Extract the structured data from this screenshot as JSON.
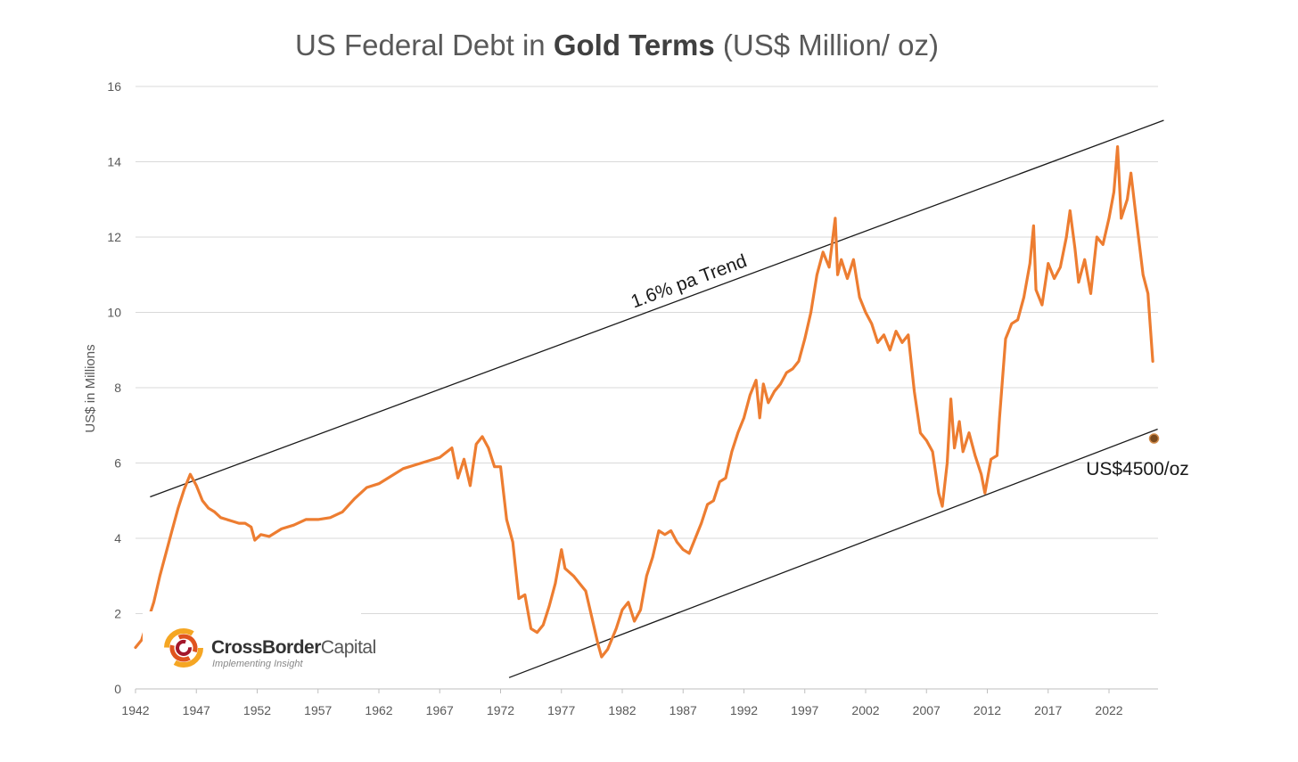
{
  "chart_data": {
    "type": "line",
    "title": "US Federal Debt in Gold Terms (US$ Million/ oz)",
    "title_parts": [
      "US Federal Debt in ",
      "Gold Terms",
      " (US$ Million/ oz)"
    ],
    "xlabel": "",
    "ylabel": "US$ in Millions",
    "xlim": [
      1942,
      2026.5
    ],
    "ylim": [
      0,
      16
    ],
    "x_ticks": [
      1942,
      1947,
      1952,
      1957,
      1962,
      1967,
      1972,
      1977,
      1982,
      1987,
      1992,
      1997,
      2002,
      2007,
      2012,
      2017,
      2022
    ],
    "y_ticks": [
      0,
      2,
      4,
      6,
      8,
      10,
      12,
      14,
      16
    ],
    "grid": "horizontal",
    "colors": {
      "series": "#ed7d31",
      "trend": "#1a1a1a",
      "marker": "#7a4a1e"
    },
    "series": [
      {
        "points": [
          [
            1942.0,
            1.1
          ],
          [
            1942.5,
            1.3
          ],
          [
            1943.0,
            1.8
          ],
          [
            1943.5,
            2.3
          ],
          [
            1944.0,
            3.0
          ],
          [
            1944.5,
            3.6
          ],
          [
            1945.0,
            4.2
          ],
          [
            1945.5,
            4.8
          ],
          [
            1946.0,
            5.3
          ],
          [
            1946.5,
            5.7
          ],
          [
            1947.0,
            5.4
          ],
          [
            1947.5,
            5.0
          ],
          [
            1948.0,
            4.8
          ],
          [
            1948.5,
            4.7
          ],
          [
            1949.0,
            4.55
          ],
          [
            1949.5,
            4.5
          ],
          [
            1950.0,
            4.45
          ],
          [
            1950.5,
            4.4
          ],
          [
            1951.0,
            4.4
          ],
          [
            1951.5,
            4.3
          ],
          [
            1951.8,
            3.95
          ],
          [
            1952.3,
            4.1
          ],
          [
            1953.0,
            4.05
          ],
          [
            1954.0,
            4.25
          ],
          [
            1955.0,
            4.35
          ],
          [
            1956.0,
            4.5
          ],
          [
            1957.0,
            4.5
          ],
          [
            1958.0,
            4.55
          ],
          [
            1959.0,
            4.7
          ],
          [
            1960.0,
            5.05
          ],
          [
            1961.0,
            5.35
          ],
          [
            1962.0,
            5.45
          ],
          [
            1963.0,
            5.65
          ],
          [
            1964.0,
            5.85
          ],
          [
            1965.0,
            5.95
          ],
          [
            1966.0,
            6.05
          ],
          [
            1967.0,
            6.15
          ],
          [
            1968.0,
            6.4
          ],
          [
            1968.5,
            5.6
          ],
          [
            1969.0,
            6.1
          ],
          [
            1969.5,
            5.4
          ],
          [
            1970.0,
            6.5
          ],
          [
            1970.5,
            6.7
          ],
          [
            1971.0,
            6.4
          ],
          [
            1971.5,
            5.9
          ],
          [
            1972.0,
            5.9
          ],
          [
            1972.5,
            4.5
          ],
          [
            1973.0,
            3.9
          ],
          [
            1973.5,
            2.4
          ],
          [
            1974.0,
            2.5
          ],
          [
            1974.5,
            1.6
          ],
          [
            1975.0,
            1.5
          ],
          [
            1975.5,
            1.7
          ],
          [
            1976.0,
            2.2
          ],
          [
            1976.5,
            2.8
          ],
          [
            1977.0,
            3.7
          ],
          [
            1977.3,
            3.2
          ],
          [
            1978.0,
            3.0
          ],
          [
            1978.5,
            2.8
          ],
          [
            1979.0,
            2.6
          ],
          [
            1979.5,
            1.9
          ],
          [
            1980.0,
            1.2
          ],
          [
            1980.3,
            0.85
          ],
          [
            1980.8,
            1.05
          ],
          [
            1981.5,
            1.6
          ],
          [
            1982.0,
            2.1
          ],
          [
            1982.5,
            2.3
          ],
          [
            1983.0,
            1.8
          ],
          [
            1983.5,
            2.1
          ],
          [
            1984.0,
            3.0
          ],
          [
            1984.5,
            3.5
          ],
          [
            1985.0,
            4.2
          ],
          [
            1985.5,
            4.1
          ],
          [
            1986.0,
            4.2
          ],
          [
            1986.5,
            3.9
          ],
          [
            1987.0,
            3.7
          ],
          [
            1987.5,
            3.6
          ],
          [
            1988.0,
            4.0
          ],
          [
            1988.5,
            4.4
          ],
          [
            1989.0,
            4.9
          ],
          [
            1989.5,
            5.0
          ],
          [
            1990.0,
            5.5
          ],
          [
            1990.5,
            5.6
          ],
          [
            1991.0,
            6.3
          ],
          [
            1991.5,
            6.8
          ],
          [
            1992.0,
            7.2
          ],
          [
            1992.5,
            7.8
          ],
          [
            1993.0,
            8.2
          ],
          [
            1993.3,
            7.2
          ],
          [
            1993.6,
            8.1
          ],
          [
            1994.0,
            7.6
          ],
          [
            1994.5,
            7.9
          ],
          [
            1995.0,
            8.1
          ],
          [
            1995.5,
            8.4
          ],
          [
            1996.0,
            8.5
          ],
          [
            1996.5,
            8.7
          ],
          [
            1997.0,
            9.3
          ],
          [
            1997.5,
            10.0
          ],
          [
            1998.0,
            11.0
          ],
          [
            1998.5,
            11.6
          ],
          [
            1999.0,
            11.2
          ],
          [
            1999.5,
            12.5
          ],
          [
            1999.7,
            11.0
          ],
          [
            2000.0,
            11.4
          ],
          [
            2000.5,
            10.9
          ],
          [
            2001.0,
            11.4
          ],
          [
            2001.5,
            10.4
          ],
          [
            2002.0,
            10.0
          ],
          [
            2002.5,
            9.7
          ],
          [
            2003.0,
            9.2
          ],
          [
            2003.5,
            9.4
          ],
          [
            2004.0,
            9.0
          ],
          [
            2004.5,
            9.5
          ],
          [
            2005.0,
            9.2
          ],
          [
            2005.5,
            9.4
          ],
          [
            2006.0,
            7.9
          ],
          [
            2006.5,
            6.8
          ],
          [
            2007.0,
            6.6
          ],
          [
            2007.5,
            6.3
          ],
          [
            2008.0,
            5.2
          ],
          [
            2008.3,
            4.85
          ],
          [
            2008.7,
            6.0
          ],
          [
            2009.0,
            7.7
          ],
          [
            2009.3,
            6.4
          ],
          [
            2009.7,
            7.1
          ],
          [
            2010.0,
            6.3
          ],
          [
            2010.5,
            6.8
          ],
          [
            2011.0,
            6.2
          ],
          [
            2011.5,
            5.7
          ],
          [
            2011.8,
            5.2
          ],
          [
            2012.3,
            6.1
          ],
          [
            2012.8,
            6.2
          ],
          [
            2013.0,
            7.2
          ],
          [
            2013.5,
            9.3
          ],
          [
            2014.0,
            9.7
          ],
          [
            2014.5,
            9.8
          ],
          [
            2015.0,
            10.4
          ],
          [
            2015.5,
            11.3
          ],
          [
            2015.8,
            12.3
          ],
          [
            2016.0,
            10.6
          ],
          [
            2016.5,
            10.2
          ],
          [
            2017.0,
            11.3
          ],
          [
            2017.5,
            10.9
          ],
          [
            2018.0,
            11.2
          ],
          [
            2018.5,
            12.0
          ],
          [
            2018.8,
            12.7
          ],
          [
            2019.2,
            11.7
          ],
          [
            2019.5,
            10.8
          ],
          [
            2020.0,
            11.4
          ],
          [
            2020.5,
            10.5
          ],
          [
            2021.0,
            12.0
          ],
          [
            2021.5,
            11.8
          ],
          [
            2022.0,
            12.5
          ],
          [
            2022.4,
            13.2
          ],
          [
            2022.7,
            14.4
          ],
          [
            2023.0,
            12.5
          ],
          [
            2023.5,
            13.0
          ],
          [
            2023.8,
            13.7
          ],
          [
            2024.2,
            12.6
          ],
          [
            2024.5,
            11.8
          ],
          [
            2024.8,
            11.0
          ],
          [
            2025.2,
            10.5
          ],
          [
            2025.4,
            9.6
          ],
          [
            2025.6,
            8.7
          ]
        ]
      }
    ],
    "trend_lines": [
      {
        "label": "1.6% pa Trend",
        "from": [
          1943.2,
          5.1
        ],
        "to": [
          2026.5,
          15.1
        ]
      },
      {
        "label": "",
        "from": [
          1972.7,
          0.3
        ],
        "to": [
          2026.0,
          6.9
        ]
      }
    ],
    "marker": {
      "x": 2025.7,
      "y": 6.65,
      "label": "US$4500/oz"
    }
  },
  "logo": {
    "name_bold": "CrossBorder",
    "name_light": "Capital",
    "tagline": "Implementing Insight"
  }
}
